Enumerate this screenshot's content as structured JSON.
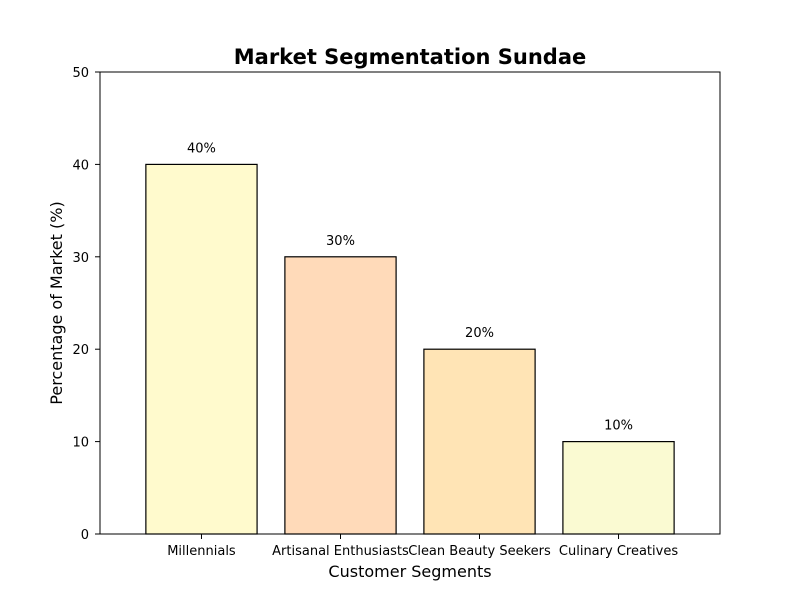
{
  "chart_data": {
    "type": "bar",
    "title": "Market Segmentation Sundae",
    "xlabel": "Customer Segments",
    "ylabel": "Percentage of Market (%)",
    "categories": [
      "Millennials",
      "Artisanal Enthusiasts",
      "Clean Beauty Seekers",
      "Culinary Creatives"
    ],
    "values": [
      40,
      30,
      20,
      10
    ],
    "data_labels": [
      "40%",
      "30%",
      "20%",
      "10%"
    ],
    "bar_colors": [
      "#FFFACD",
      "#FFDAB9",
      "#FFE4B5",
      "#FAFAD2"
    ],
    "edge_color": "#000000",
    "ylim": [
      0,
      50
    ],
    "yticks": [
      0,
      10,
      20,
      30,
      40,
      50
    ],
    "ytick_labels": [
      "0",
      "10",
      "20",
      "30",
      "40",
      "50"
    ],
    "grid": false,
    "legend": "none"
  }
}
